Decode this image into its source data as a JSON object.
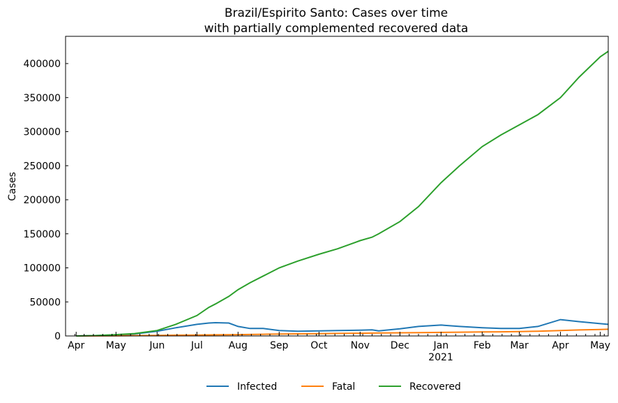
{
  "chart_data": {
    "type": "line",
    "title": "Brazil/Espirito Santo: Cases over time",
    "subtitle": "with partially complemented recovered data",
    "xlabel": "",
    "ylabel": "Cases",
    "x_month_ticks": [
      "Apr",
      "May",
      "Jun",
      "Jul",
      "Aug",
      "Sep",
      "Oct",
      "Nov",
      "Dec",
      "Jan",
      "Feb",
      "Mar",
      "Apr",
      "May"
    ],
    "x_year_label": "2021",
    "y_ticks": [
      "0",
      "50000",
      "100000",
      "150000",
      "200000",
      "250000",
      "300000",
      "350000",
      "400000"
    ],
    "ylim": [
      0,
      440000
    ],
    "xlim": [
      "2020-03-24",
      "2021-05-07"
    ],
    "grid": false,
    "legend_position": "bottom-center",
    "x": [
      "2020-04-01",
      "2020-04-15",
      "2020-05-01",
      "2020-05-15",
      "2020-06-01",
      "2020-06-15",
      "2020-07-01",
      "2020-07-10",
      "2020-07-15",
      "2020-07-25",
      "2020-08-01",
      "2020-08-10",
      "2020-08-20",
      "2020-09-01",
      "2020-09-15",
      "2020-10-01",
      "2020-10-15",
      "2020-11-01",
      "2020-11-10",
      "2020-11-15",
      "2020-12-01",
      "2020-12-15",
      "2021-01-01",
      "2021-01-15",
      "2021-02-01",
      "2021-02-15",
      "2021-03-01",
      "2021-03-15",
      "2021-04-01",
      "2021-04-15",
      "2021-05-01",
      "2021-05-07"
    ],
    "series": [
      {
        "name": "Infected",
        "color": "#1f77b4",
        "values": [
          0,
          500,
          1500,
          3000,
          7000,
          12000,
          17000,
          19000,
          19500,
          19000,
          14000,
          11000,
          11000,
          8000,
          7000,
          7500,
          8000,
          8500,
          9000,
          7500,
          10500,
          14000,
          16000,
          14000,
          12000,
          11000,
          11000,
          14000,
          24000,
          21000,
          18000,
          17000
        ]
      },
      {
        "name": "Fatal",
        "color": "#ff7f0e",
        "values": [
          0,
          100,
          300,
          500,
          800,
          1100,
          1300,
          1500,
          1600,
          1800,
          2000,
          2200,
          2500,
          2800,
          3100,
          3400,
          3700,
          4000,
          4200,
          4300,
          4600,
          4900,
          5200,
          5500,
          5800,
          6100,
          6400,
          7000,
          8000,
          8800,
          9500,
          9800
        ]
      },
      {
        "name": "Recovered",
        "color": "#2ca02c",
        "values": [
          0,
          500,
          2000,
          3500,
          8000,
          17000,
          30000,
          42000,
          47000,
          58000,
          68000,
          78000,
          88000,
          100000,
          110000,
          120000,
          128000,
          140000,
          145000,
          150000,
          168000,
          190000,
          225000,
          250000,
          278000,
          295000,
          310000,
          325000,
          350000,
          380000,
          410000,
          418000
        ]
      }
    ]
  }
}
